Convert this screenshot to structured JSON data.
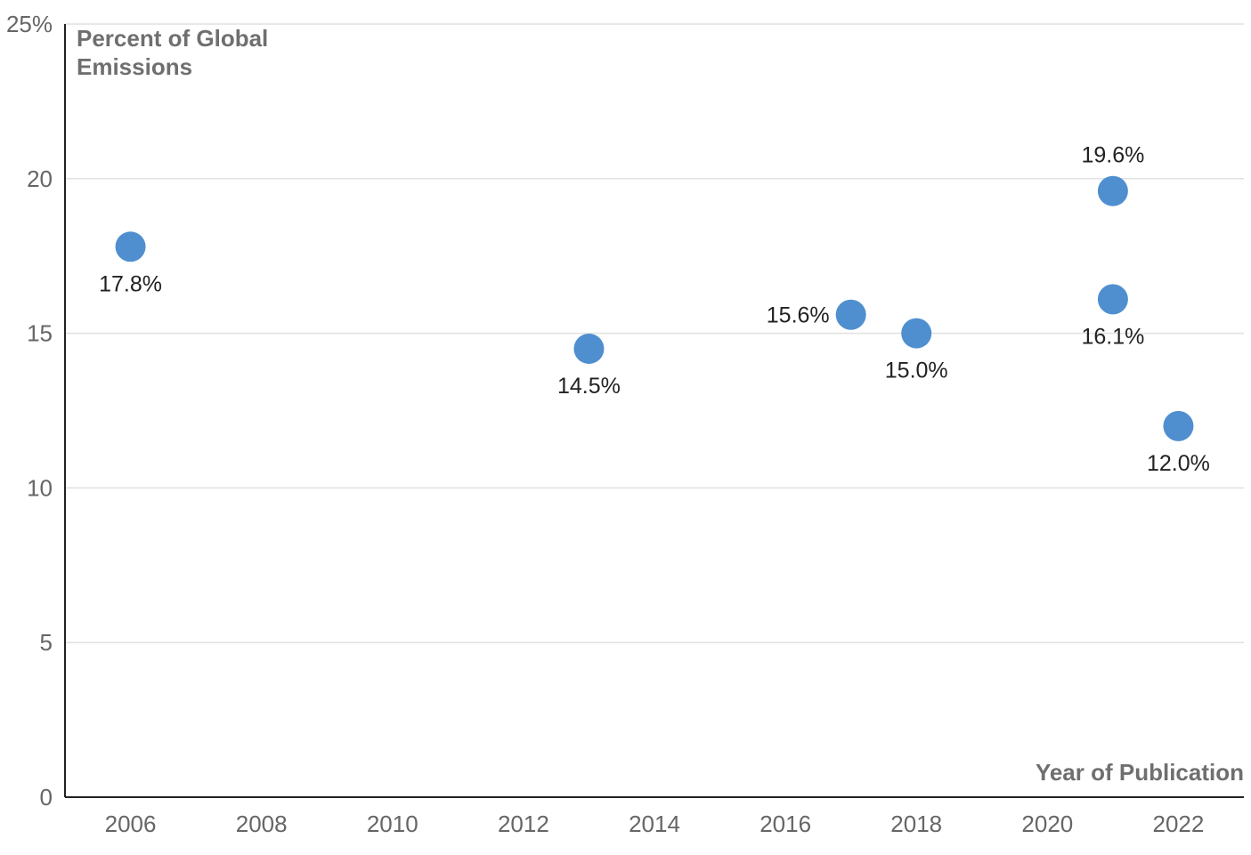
{
  "chart_data": {
    "type": "scatter",
    "title": "",
    "ylabel": "Percent of Global Emissions",
    "xlabel": "Year of Publication",
    "xlim": [
      2005,
      2023
    ],
    "ylim": [
      0,
      25
    ],
    "x_ticks": [
      "2006",
      "2008",
      "2010",
      "2012",
      "2014",
      "2016",
      "2018",
      "2020",
      "2022"
    ],
    "y_ticks": [
      "0",
      "5",
      "10",
      "15",
      "20",
      "25%"
    ],
    "grid": true,
    "legend": "none",
    "point_color": "#4f8fcf",
    "series": [
      {
        "points": [
          {
            "x": 2006,
            "y": 17.8,
            "label": "17.8%",
            "label_pos": "below"
          },
          {
            "x": 2013,
            "y": 14.5,
            "label": "14.5%",
            "label_pos": "below"
          },
          {
            "x": 2017,
            "y": 15.6,
            "label": "15.6%",
            "label_pos": "left"
          },
          {
            "x": 2018,
            "y": 15.0,
            "label": "15.0%",
            "label_pos": "below"
          },
          {
            "x": 2021,
            "y": 19.6,
            "label": "19.6%",
            "label_pos": "above"
          },
          {
            "x": 2021,
            "y": 16.1,
            "label": "16.1%",
            "label_pos": "below"
          },
          {
            "x": 2022,
            "y": 12.0,
            "label": "12.0%",
            "label_pos": "below"
          }
        ]
      }
    ]
  }
}
